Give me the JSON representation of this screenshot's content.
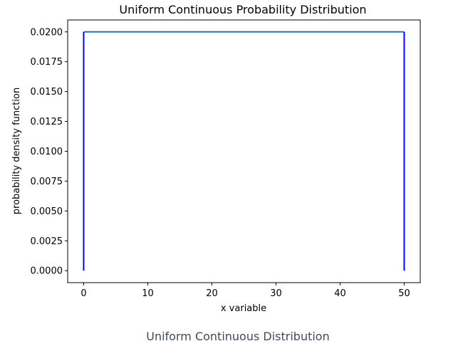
{
  "chart_data": {
    "type": "line",
    "title": "Uniform Continuous Probability Distribution",
    "xlabel": "x variable",
    "ylabel": "probability density function",
    "xlim": [
      -2.5,
      52.5
    ],
    "ylim": [
      -0.001,
      0.021
    ],
    "x_ticks": [
      0,
      10,
      20,
      30,
      40,
      50
    ],
    "x_tick_labels": [
      "0",
      "10",
      "20",
      "30",
      "40",
      "50"
    ],
    "y_ticks": [
      0.0,
      0.0025,
      0.005,
      0.0075,
      0.01,
      0.0125,
      0.015,
      0.0175,
      0.02
    ],
    "y_tick_labels": [
      "0.0000",
      "0.0025",
      "0.0050",
      "0.0075",
      "0.0100",
      "0.0125",
      "0.0150",
      "0.0175",
      "0.0200"
    ],
    "grid": false,
    "series": [
      {
        "color": "#1f77b4",
        "x": [
          0,
          50
        ],
        "y": [
          0.02,
          0.02
        ]
      },
      {
        "color": "#0000ff",
        "x": [
          0,
          0
        ],
        "y": [
          0.0,
          0.02
        ]
      },
      {
        "color": "#0000ff",
        "x": [
          50,
          50
        ],
        "y": [
          0.0,
          0.02
        ]
      }
    ]
  },
  "caption": "Uniform Continuous Distribution"
}
